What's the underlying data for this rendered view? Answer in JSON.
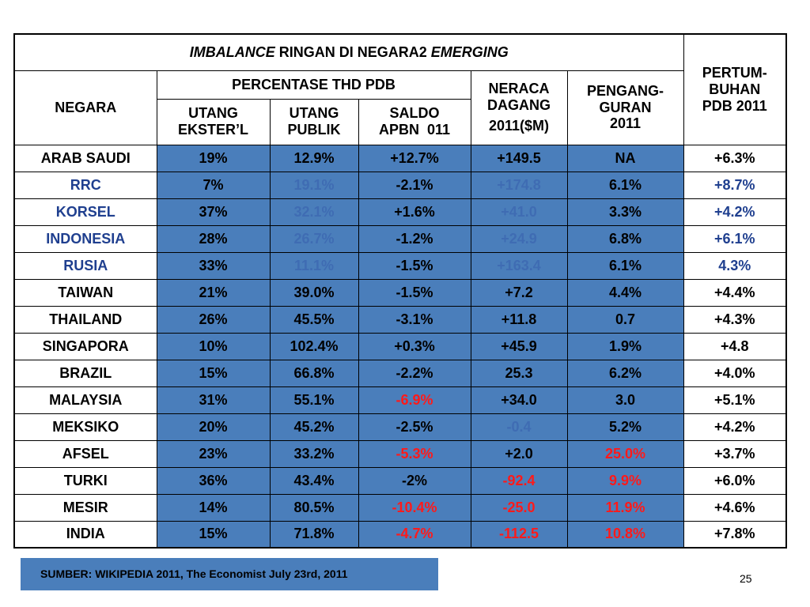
{
  "title": {
    "part1": "IMBALANCE",
    "part2": " RINGAN DI NEGARA2 ",
    "part3": "EMERGING"
  },
  "headers": {
    "negara": "NEGARA",
    "percentase": "PERCENTASE THD PDB",
    "utang_ekster": [
      "UTANG",
      "EKSTER’L"
    ],
    "utang_publik": [
      "UTANG",
      "PUBLIK"
    ],
    "saldo_apbn": [
      "SALDO",
      "APBN  011"
    ],
    "neraca_dagang": [
      "NERACA",
      "DAGANG",
      "2011($M)"
    ],
    "pengangguran": [
      "PENGANG-",
      "GURAN",
      "2011"
    ],
    "pertumbuhan": [
      "PERTUM-",
      "BUHAN",
      "PDB 2011"
    ]
  },
  "rows": [
    [
      "ARAB SAUDI",
      "19%",
      "12.9%",
      "+12.7%",
      "+149.5",
      "NA",
      "+6.3%"
    ],
    [
      "RRC",
      "7%",
      "19.1%",
      "-2.1%",
      "+174.8",
      "6.1%",
      "+8.7%"
    ],
    [
      "KORSEL",
      "37%",
      "32.1%",
      "+1.6%",
      "+41.0",
      "3.3%",
      "+4.2%"
    ],
    [
      "INDONESIA",
      "28%",
      "26.7%",
      "-1.2%",
      "+24.9",
      "6.8%",
      "+6.1%"
    ],
    [
      "RUSIA",
      "33%",
      "11.1%",
      "-1.5%",
      "+163.4",
      "6.1%",
      "4.3%"
    ],
    [
      "TAIWAN",
      "21%",
      "39.0%",
      "-1.5%",
      "+7.2",
      "4.4%",
      "+4.4%"
    ],
    [
      "THAILAND",
      "26%",
      "45.5%",
      "-3.1%",
      "+11.8",
      "0.7",
      "+4.3%"
    ],
    [
      "SINGAPORA",
      "10%",
      "102.4%",
      "+0.3%",
      "+45.9",
      "1.9%",
      "+4.8"
    ],
    [
      "BRAZIL",
      "15%",
      "66.8%",
      "-2.2%",
      "25.3",
      "6.2%",
      "+4.0%"
    ],
    [
      "MALAYSIA",
      "31%",
      "55.1%",
      "-6.9%",
      "+34.0",
      "3.0",
      "+5.1%"
    ],
    [
      "MEKSIKO",
      "20%",
      "45.2%",
      "-2.5%",
      "-0.4",
      "5.2%",
      "+4.2%"
    ],
    [
      "AFSEL",
      "23%",
      "33.2%",
      "-5.3%",
      "+2.0",
      "25.0%",
      "+3.7%"
    ],
    [
      "TURKI",
      "36%",
      "43.4%",
      "-2%",
      "-92.4",
      "9.9%",
      "+6.0%"
    ],
    [
      "MESIR",
      "14%",
      "80.5%",
      "-10.4%",
      "-25.0",
      "11.9%",
      "+4.6%"
    ],
    [
      "INDIA",
      "15%",
      "71.8%",
      "-4.7%",
      "-112.5",
      "10.8%",
      "+7.8%"
    ]
  ],
  "row_colors": [
    [
      "",
      "",
      "",
      "",
      "",
      "",
      ""
    ],
    [
      "navy",
      "",
      "lblue",
      "",
      "lblue",
      "",
      "navy"
    ],
    [
      "navy",
      "",
      "lblue",
      "",
      "lblue",
      "",
      "navy"
    ],
    [
      "navy",
      "",
      "lblue",
      "",
      "lblue",
      "",
      "navy"
    ],
    [
      "navy",
      "",
      "lblue",
      "",
      "lblue",
      "",
      "navy"
    ],
    [
      "",
      "",
      "",
      "",
      "",
      "",
      ""
    ],
    [
      "",
      "",
      "",
      "",
      "",
      "",
      ""
    ],
    [
      "",
      "",
      "",
      "",
      "",
      "",
      ""
    ],
    [
      "",
      "",
      "",
      "",
      "",
      "",
      ""
    ],
    [
      "",
      "",
      "",
      "red",
      "",
      "",
      ""
    ],
    [
      "",
      "",
      "",
      "",
      "lblue",
      "",
      ""
    ],
    [
      "",
      "",
      "",
      "red",
      "",
      "red",
      ""
    ],
    [
      "",
      "",
      "",
      "",
      "red",
      "red",
      ""
    ],
    [
      "",
      "",
      "",
      "red",
      "red",
      "red",
      ""
    ],
    [
      "",
      "",
      "",
      "red",
      "red",
      "red",
      ""
    ]
  ],
  "colors": {
    "cell_blue": "#4a7ebb",
    "text_red": "#ff1a1a",
    "text_blue": "#3f6cb3",
    "text_navy": "#1f3f8f"
  },
  "source": "SUMBER: WIKIPEDIA 2011, The Economist July 23rd, 2011",
  "page_number": "25"
}
